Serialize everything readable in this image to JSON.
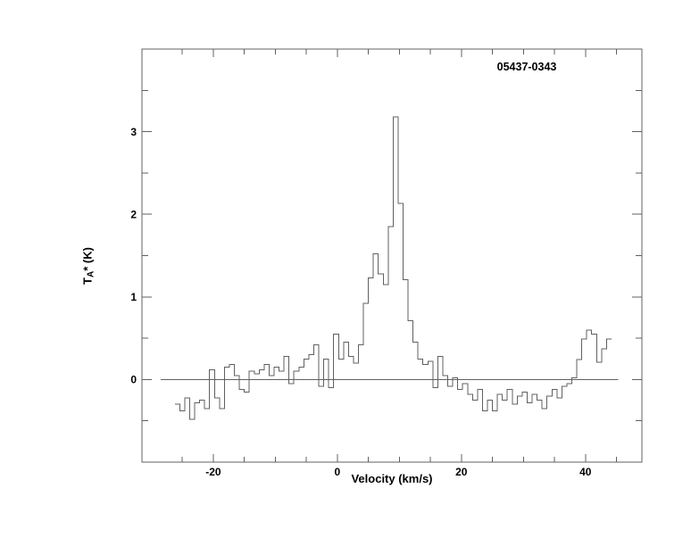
{
  "chart": {
    "title": "05437-0343",
    "xlabel": "Velocity (km/s)",
    "ylabel": "TA* (K)",
    "ylabel_prefix": "T",
    "ylabel_sub": "A",
    "ylabel_rest": "* (K)"
  },
  "chart_data": {
    "type": "line",
    "style": "histogram-step",
    "title": "05437-0343",
    "xlabel": "Velocity (km/s)",
    "ylabel": "TA* (K)",
    "xlim": [
      -31.5,
      49.1
    ],
    "ylim": [
      -1,
      4
    ],
    "grid": false,
    "legend": null,
    "frame_color": "#606060",
    "line_color": "#606060",
    "text_color": "#000000",
    "background": "#ffffff",
    "x_ticks": {
      "major": [
        -20,
        0,
        20,
        40
      ],
      "minor": [
        -25,
        -15,
        -10,
        -5,
        5,
        10,
        15,
        25,
        30,
        35,
        45
      ]
    },
    "y_ticks": {
      "major": [
        0,
        1,
        2,
        3
      ],
      "minor": [
        -0.5,
        0.5,
        1.5,
        2.5,
        3.5
      ]
    },
    "baseline": {
      "y": 0,
      "x_from": -28.5,
      "x_to": 45.3
    },
    "channel_width": 0.8,
    "x": [
      -25.8,
      -25.0,
      -24.2,
      -23.4,
      -22.6,
      -21.8,
      -21.0,
      -20.2,
      -19.4,
      -18.6,
      -17.8,
      -17.0,
      -16.2,
      -15.4,
      -14.6,
      -13.8,
      -13.0,
      -12.2,
      -11.4,
      -10.6,
      -9.8,
      -9.0,
      -8.2,
      -7.4,
      -6.6,
      -5.8,
      -5.0,
      -4.2,
      -3.4,
      -2.6,
      -1.8,
      -1.0,
      -0.2,
      0.6,
      1.4,
      2.2,
      3.0,
      3.8,
      4.6,
      5.4,
      6.2,
      7.0,
      7.8,
      8.6,
      9.4,
      10.2,
      11.0,
      11.8,
      12.6,
      13.4,
      14.2,
      15.0,
      15.8,
      16.6,
      17.4,
      18.2,
      19.0,
      19.8,
      20.6,
      21.4,
      22.2,
      23.0,
      23.8,
      24.6,
      25.4,
      26.2,
      27.0,
      27.8,
      28.6,
      29.4,
      30.2,
      31.0,
      31.8,
      32.6,
      33.4,
      34.2,
      35.0,
      35.8,
      36.6,
      37.4,
      38.2,
      39.0,
      39.8,
      40.6,
      41.4,
      42.2,
      43.0,
      43.8
    ],
    "values": [
      -0.3,
      -0.38,
      -0.22,
      -0.48,
      -0.28,
      -0.25,
      -0.35,
      0.12,
      -0.22,
      -0.35,
      0.15,
      0.18,
      0.05,
      -0.12,
      -0.15,
      0.1,
      0.07,
      0.12,
      0.18,
      0.05,
      0.15,
      0.1,
      0.28,
      -0.05,
      0.1,
      0.15,
      0.25,
      0.3,
      0.42,
      -0.08,
      0.25,
      -0.1,
      0.55,
      0.25,
      0.45,
      0.28,
      0.2,
      0.42,
      0.92,
      1.23,
      1.52,
      1.28,
      1.15,
      1.85,
      3.18,
      2.13,
      1.21,
      0.71,
      0.45,
      0.25,
      0.18,
      0.22,
      -0.1,
      0.28,
      0.05,
      -0.08,
      0.02,
      -0.12,
      -0.05,
      -0.18,
      -0.25,
      -0.12,
      -0.38,
      -0.25,
      -0.38,
      -0.18,
      -0.25,
      -0.12,
      -0.3,
      -0.2,
      -0.15,
      -0.28,
      -0.18,
      -0.25,
      -0.35,
      -0.2,
      -0.12,
      -0.22,
      -0.08,
      -0.05,
      0.02,
      0.24,
      0.49,
      0.6,
      0.55,
      0.21,
      0.37,
      0.49
    ]
  }
}
